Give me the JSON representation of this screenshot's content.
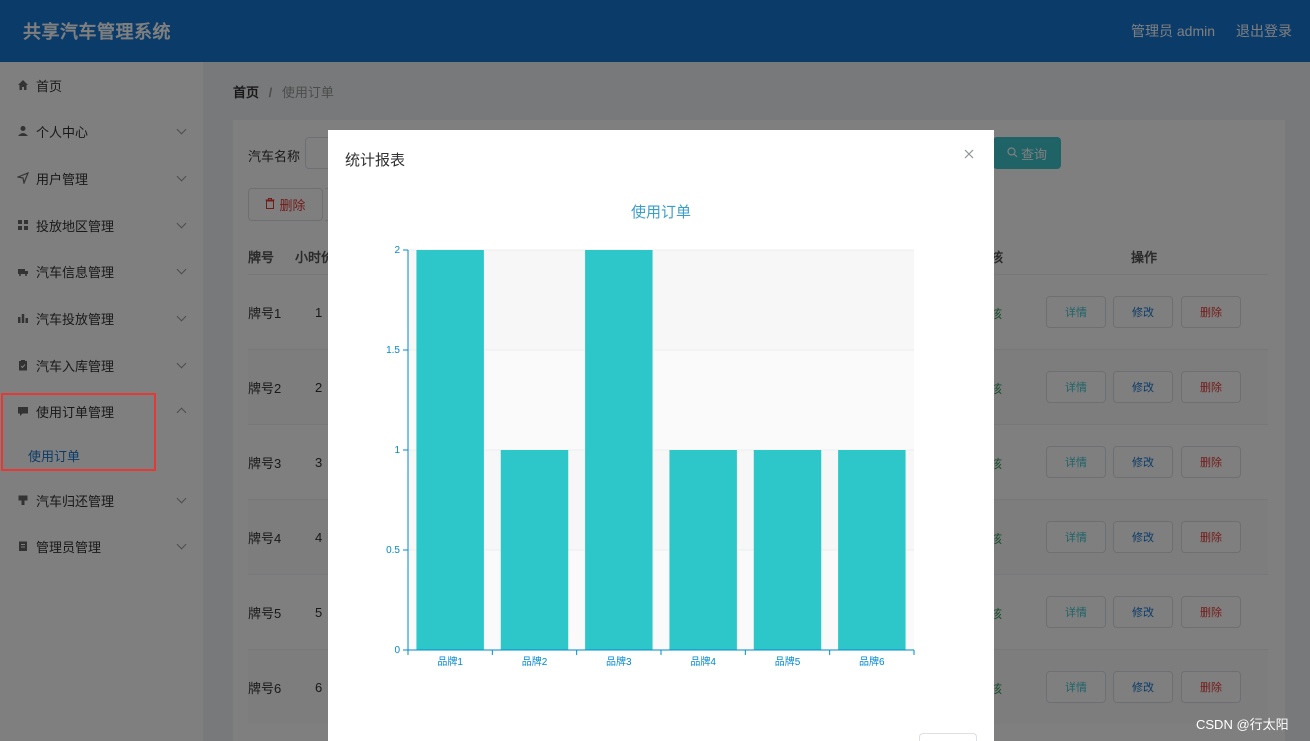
{
  "header": {
    "app_title": "共享汽车管理系统",
    "user_label": "管理员 admin",
    "logout_label": "退出登录"
  },
  "sidebar": {
    "items": [
      {
        "label": "首页",
        "icon": "home-icon",
        "has_children": false
      },
      {
        "label": "个人中心",
        "icon": "user-icon",
        "has_children": true
      },
      {
        "label": "用户管理",
        "icon": "send-icon",
        "has_children": true
      },
      {
        "label": "投放地区管理",
        "icon": "grid-icon",
        "has_children": true
      },
      {
        "label": "汽车信息管理",
        "icon": "truck-icon",
        "has_children": true
      },
      {
        "label": "汽车投放管理",
        "icon": "bar-chart-icon",
        "has_children": true
      },
      {
        "label": "汽车入库管理",
        "icon": "clipboard-icon",
        "has_children": true
      },
      {
        "label": "使用订单管理",
        "icon": "message-icon",
        "has_children": true,
        "expanded": true
      },
      {
        "label": "汽车归还管理",
        "icon": "pin-icon",
        "has_children": true
      },
      {
        "label": "管理员管理",
        "icon": "document-icon",
        "has_children": true
      }
    ],
    "submenu": {
      "label": "使用订单"
    }
  },
  "breadcrumb": {
    "home": "首页",
    "separator": "/",
    "current": "使用订单"
  },
  "toolbar": {
    "search_label": "汽车名称",
    "query_label": "查询",
    "delete_label": "删除"
  },
  "table": {
    "headers": {
      "plate": "牌号",
      "hourly": "小时价",
      "status": "核",
      "ops": "操作"
    },
    "rows": [
      {
        "plate": "牌号1",
        "hourly": "1",
        "status": "核"
      },
      {
        "plate": "牌号2",
        "hourly": "2",
        "status": "核"
      },
      {
        "plate": "牌号3",
        "hourly": "3",
        "status": "核"
      },
      {
        "plate": "牌号4",
        "hourly": "4",
        "status": "核"
      },
      {
        "plate": "牌号5",
        "hourly": "5",
        "status": "核"
      },
      {
        "plate": "牌号6",
        "hourly": "6",
        "status": "核"
      }
    ],
    "ops": {
      "detail": "详情",
      "edit": "修改",
      "delete": "删除"
    }
  },
  "modal": {
    "title": "统计报表",
    "close_icon": "close-icon"
  },
  "chart_data": {
    "type": "bar",
    "title": "使用订单",
    "categories": [
      "品牌1",
      "品牌2",
      "品牌3",
      "品牌4",
      "品牌5",
      "品牌6"
    ],
    "values": [
      2,
      1,
      2,
      1,
      1,
      1
    ],
    "ylim": [
      0,
      2
    ],
    "yticks": [
      "0",
      "0.5",
      "1",
      "1.5",
      "2"
    ],
    "xlabel": "",
    "ylabel": "",
    "bar_color": "#2ec7c9",
    "axis_color": "#008acd",
    "grid": true
  },
  "watermark": "CSDN @行太阳",
  "colors": {
    "header_bg": "#1677d2",
    "accent": "#3fc6cf",
    "danger": "#e53935"
  }
}
